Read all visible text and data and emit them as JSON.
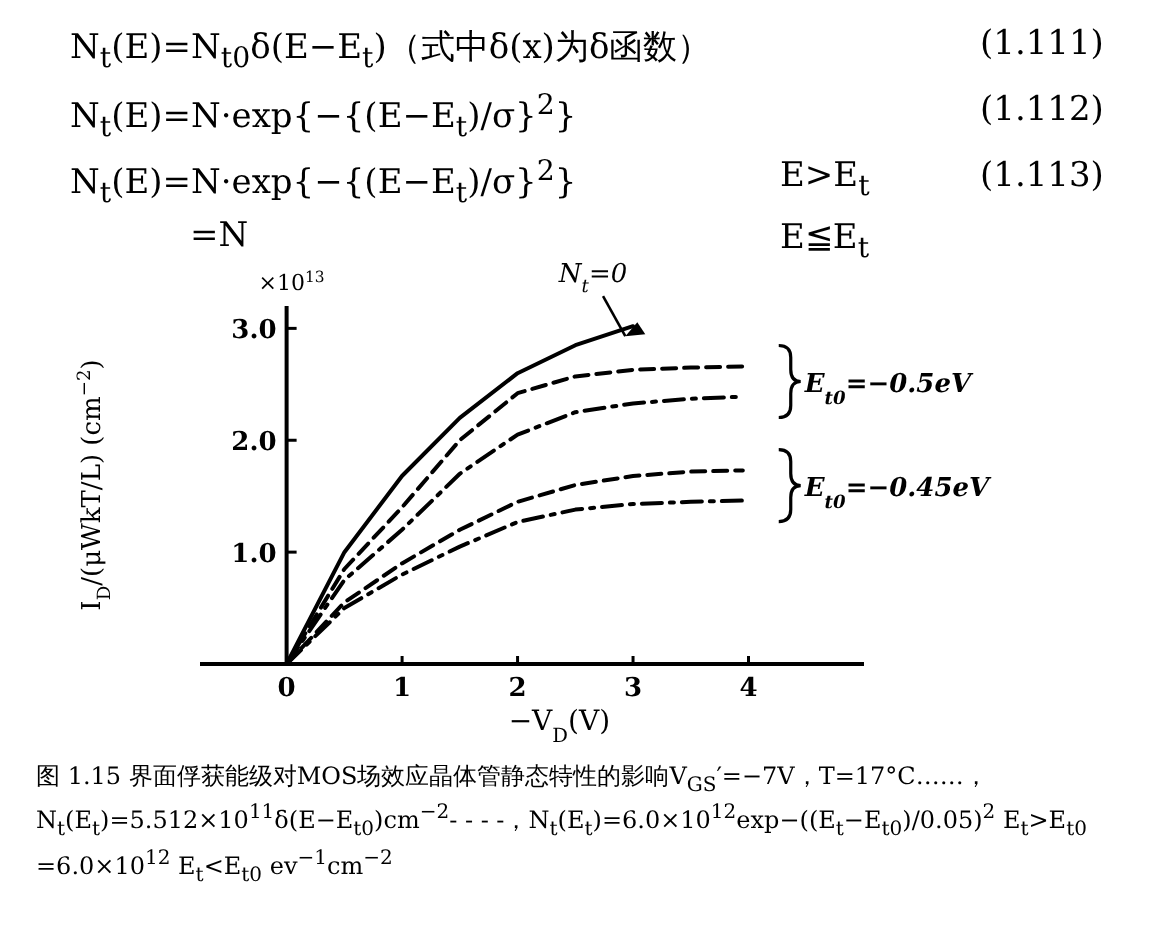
{
  "chart_data": {
    "type": "line",
    "title": "图 1.15  界面俘获能级对MOS场效应晶体管静态特性的影响V$_{GS}$′=−7V，T=17°C……，N$_{t}$(E$_{t}$)=5.512×10$^{11}$δ(E−E$_{t0}$)cm$^{−2}$- - - -，N$_{t}$(E$_{t}$)=6.0×10$^{12}$exp−((E$_{t}$−E$_{t0}$)/0.05)$^{2}$ E$_{t}$>E$_{t0}$ =6.0×10$^{12}$ E$_{t}$<E$_{t0}$ ev$^{−1}$cm$^{−2}$",
    "xlabel": "−V$_{D}$(V)",
    "ylabel": "I$_{D}$/(μWkT/L) (cm$^{−2}$)",
    "x": [
      0,
      0.5,
      1,
      1.5,
      2,
      2.5,
      3,
      3.5,
      3.95
    ],
    "series": [
      {
        "name": "N$_{t}$=0",
        "color": "#000000",
        "line_style": "solid",
        "x": [
          0,
          0.5,
          1,
          1.5,
          2,
          2.5,
          3
        ],
        "values": [
          0,
          1.0,
          1.68,
          2.2,
          2.6,
          2.85,
          3.02
        ]
      },
      {
        "color": "#000000",
        "line_style": "dashed",
        "values": [
          0,
          0.85,
          1.4,
          2.0,
          2.42,
          2.57,
          2.63,
          2.65,
          2.66
        ]
      },
      {
        "color": "#000000",
        "line_style": "dashdot",
        "values": [
          0,
          0.75,
          1.2,
          1.7,
          2.05,
          2.25,
          2.33,
          2.37,
          2.39
        ]
      },
      {
        "color": "#000000",
        "line_style": "dashed",
        "values": [
          0,
          0.55,
          0.9,
          1.2,
          1.45,
          1.6,
          1.68,
          1.72,
          1.73
        ]
      },
      {
        "color": "#000000",
        "line_style": "dashdot",
        "values": [
          0,
          0.5,
          0.8,
          1.05,
          1.27,
          1.38,
          1.43,
          1.45,
          1.46
        ]
      }
    ],
    "xlim": [
      -0.75,
      5.0
    ],
    "xticks": [
      0,
      1,
      2,
      3,
      4
    ],
    "ylim": [
      0,
      3.2
    ],
    "yticks": [
      {
        "value": 1,
        "label": "1.0"
      },
      {
        "value": 2,
        "label": "2.0"
      },
      {
        "value": 3,
        "label": "3.0"
      }
    ],
    "grid": false,
    "annotations": [
      "N$_{t}$(E)=N$_{t0}$δ(E−E$_{t}$)（式中δ(x)为δ函数）",
      "(1.111)",
      "N$_{t}$(E)=N·exp{−{(E−E$_{t}$)/σ}$^{2}$}",
      "(1.112)",
      "N$_{t}$(E)=N·exp{−{(E−E$_{t}$)/σ}$^{2}$}",
      "E>E$_{t}$",
      "(1.113)",
      "=N",
      "E≦E$_{t}$",
      "×10$^{13}$",
      "E$_{t0}$=−0.5eV",
      "E$_{t0}$=−0.45eV"
    ]
  }
}
